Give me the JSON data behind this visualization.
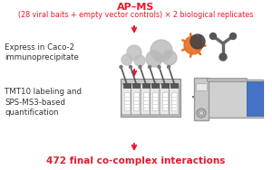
{
  "title_line1": "AP–MS",
  "title_line2": "(28 viral baits + empty vector controls) × 2 biological replicates",
  "label1": "Express in Caco-2\nimmunoprecipitate",
  "label2": "TMT10 labeling and\nSPS-MS3-based\nquantification",
  "label3": "472 final co-complex interactions",
  "title_color": "#e8192c",
  "label3_color": "#e8192c",
  "arrow_color": "#e8192c",
  "text_color": "#333333",
  "bg_color": "#ffffff",
  "plus_sign": "+",
  "figsize": [
    3.0,
    1.88
  ],
  "dpi": 100
}
